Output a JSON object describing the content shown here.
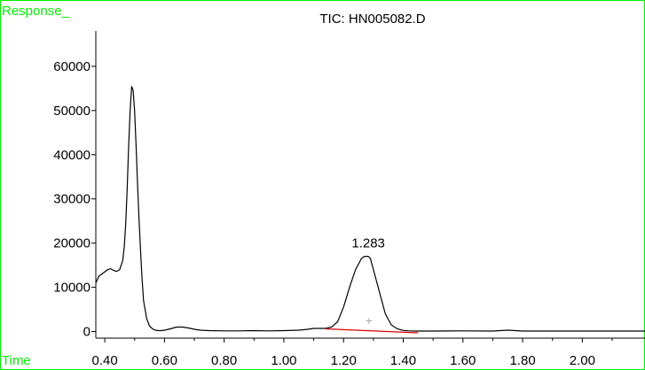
{
  "chart_data": {
    "type": "line",
    "title": "TIC: HN005082.D",
    "ylabel": "Response_",
    "xlabel": "Time",
    "xlim": [
      0.37,
      2.21
    ],
    "ylim": [
      -1500,
      68000
    ],
    "x_ticks": [
      0.4,
      0.6,
      0.8,
      1.0,
      1.2,
      1.4,
      1.6,
      1.8,
      2.0
    ],
    "x_tick_labels": [
      "0.40",
      "0.60",
      "0.80",
      "1.00",
      "1.20",
      "1.40",
      "1.60",
      "1.80",
      "2.00"
    ],
    "y_ticks": [
      0,
      10000,
      20000,
      30000,
      40000,
      50000,
      60000
    ],
    "y_tick_labels": [
      "0",
      "10000",
      "20000",
      "30000",
      "40000",
      "50000",
      "60000"
    ],
    "series": [
      {
        "x": [
          0.37,
          0.38,
          0.39,
          0.4,
          0.41,
          0.42,
          0.43,
          0.44,
          0.45,
          0.46,
          0.465,
          0.47,
          0.475,
          0.48,
          0.485,
          0.49,
          0.495,
          0.5,
          0.505,
          0.51,
          0.515,
          0.52,
          0.525,
          0.53,
          0.54,
          0.55,
          0.56,
          0.57,
          0.58,
          0.59,
          0.6,
          0.62,
          0.64,
          0.66,
          0.68,
          0.7,
          0.72,
          0.75,
          0.8,
          0.85,
          0.9,
          0.95,
          1.0,
          1.05,
          1.08,
          1.1,
          1.12,
          1.14,
          1.16,
          1.18,
          1.2,
          1.22,
          1.24,
          1.26,
          1.27,
          1.283,
          1.29,
          1.3,
          1.32,
          1.34,
          1.36,
          1.38,
          1.4,
          1.42,
          1.44,
          1.5,
          1.6,
          1.7,
          1.75,
          1.8,
          1.9,
          2.0,
          2.1,
          2.21
        ],
        "y": [
          11000,
          12500,
          13000,
          13500,
          14000,
          14200,
          13800,
          13600,
          14000,
          16000,
          19000,
          24000,
          32000,
          42000,
          50000,
          55500,
          54500,
          50000,
          42000,
          33000,
          25000,
          18000,
          12000,
          7000,
          3000,
          1200,
          600,
          300,
          200,
          200,
          300,
          600,
          1000,
          1000,
          800,
          500,
          300,
          200,
          150,
          150,
          200,
          150,
          200,
          300,
          500,
          700,
          700,
          700,
          1000,
          2200,
          5500,
          10000,
          14000,
          16500,
          17000,
          17000,
          16500,
          14000,
          9000,
          4000,
          1500,
          600,
          250,
          150,
          100,
          100,
          150,
          100,
          300,
          100,
          100,
          100,
          100,
          100
        ]
      }
    ],
    "annotations": [
      {
        "text": "1.283",
        "x": 1.283,
        "y": 17000
      }
    ],
    "baseline": {
      "x1": 1.14,
      "y1": 600,
      "x2": 1.45,
      "y2": -300,
      "color": "#dd0000"
    },
    "marker": {
      "symbol": "+",
      "x": 1.285,
      "y": 2500,
      "color": "#aaaaaa"
    },
    "colors": {
      "frame": "#00ee00",
      "axis_labels": "#00ee00",
      "trace": "#000000"
    }
  }
}
